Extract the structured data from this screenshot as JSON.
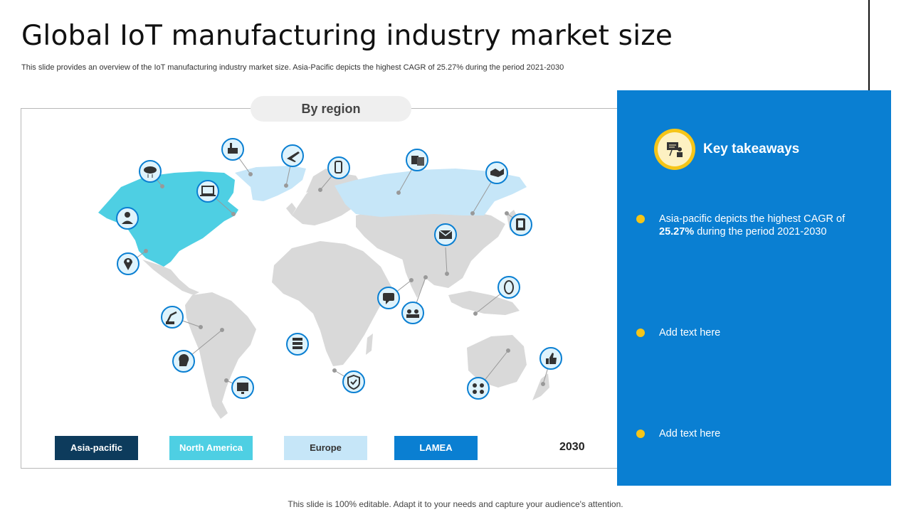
{
  "title": "Global IoT manufacturing industry market size",
  "subtitle": "This slide provides an overview of the IoT manufacturing industry market size. Asia-Pacific depicts the highest CAGR of 25.27% during the period 2021-2030",
  "region_label": "By region",
  "legend": [
    {
      "label": "Asia-pacific",
      "bg": "#0d3b5c",
      "fg": "#ffffff"
    },
    {
      "label": "North America",
      "bg": "#4ecfe3",
      "fg": "#ffffff"
    },
    {
      "label": "Europe",
      "bg": "#c6e6f8",
      "fg": "#333333"
    },
    {
      "label": "LAMEA",
      "bg": "#0a7fd2",
      "fg": "#ffffff"
    }
  ],
  "year": "2030",
  "takeaways": {
    "title": "Key takeaways",
    "items": [
      {
        "prefix": "Asia-pacific depicts the highest CAGR of ",
        "bold": "25.27%",
        "suffix": " during the period 2021-2030"
      },
      {
        "prefix": "Add text here",
        "bold": "",
        "suffix": ""
      },
      {
        "prefix": "Add text here",
        "bold": "",
        "suffix": ""
      }
    ]
  },
  "colors": {
    "accent": "#0a7fd2",
    "bullet": "#f5c518",
    "land": "#d9d9d9",
    "north_america": "#4ecfe3",
    "europe_asia_highlight": "#c6e6f8"
  },
  "footer": "This slide is 100% editable. Adapt it to your needs and capture your audience's attention."
}
